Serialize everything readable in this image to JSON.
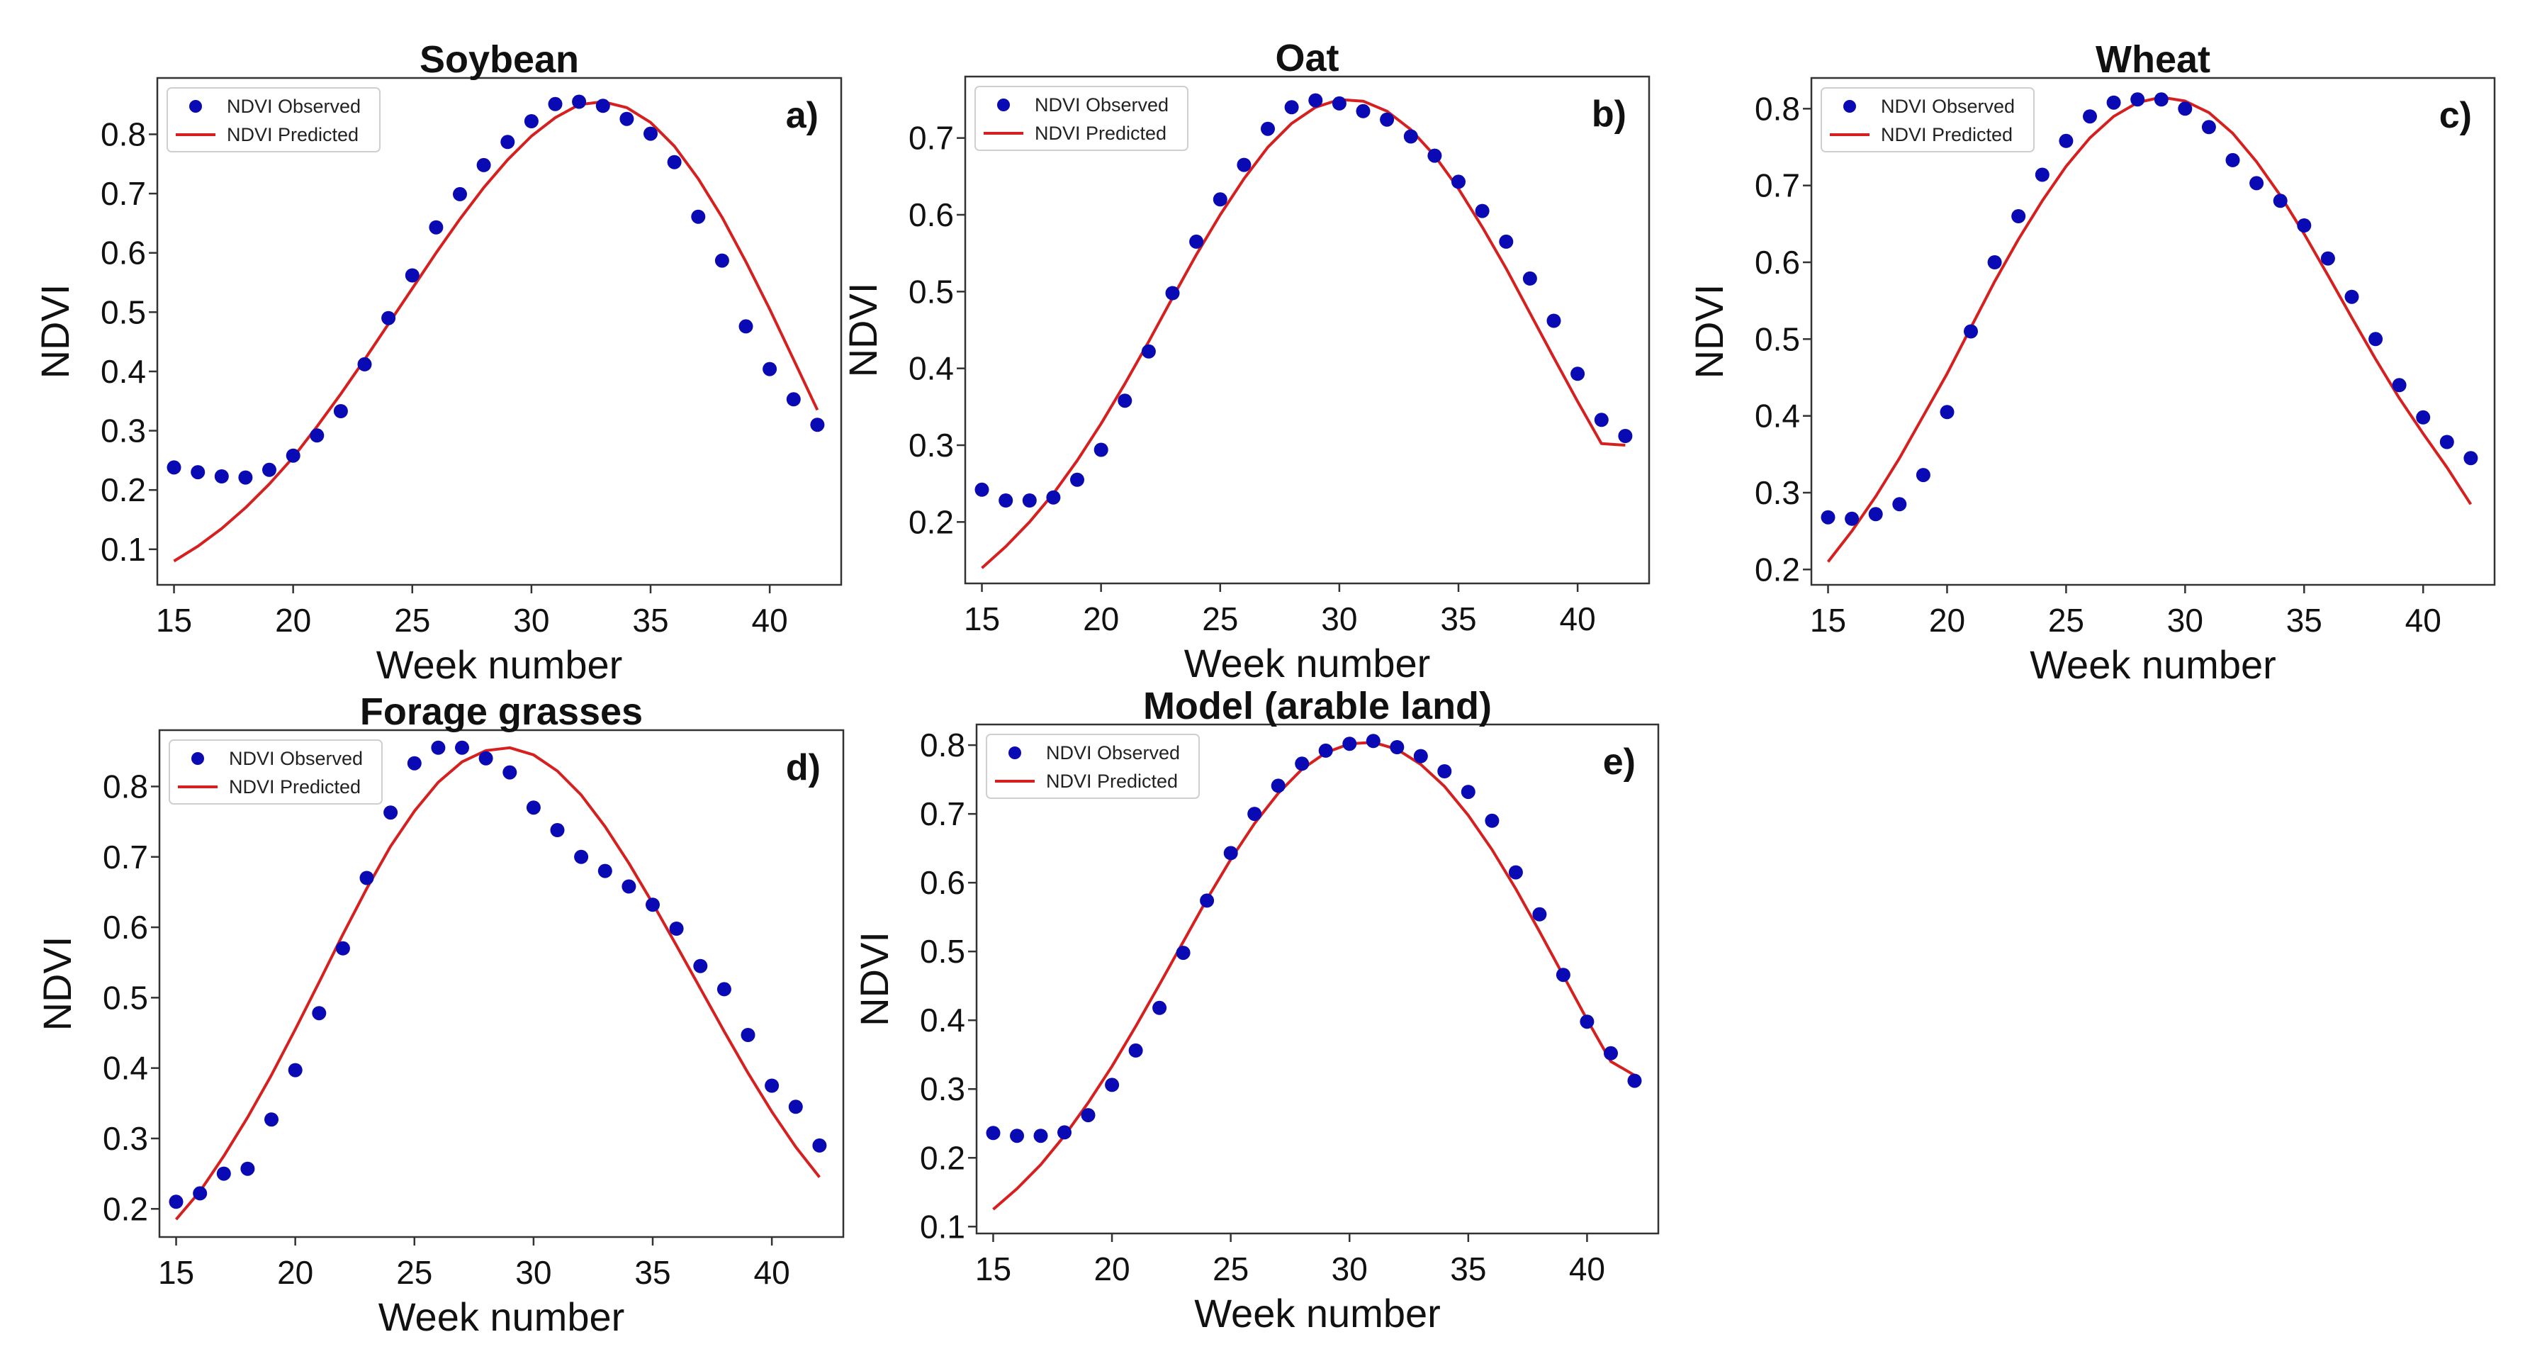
{
  "colors": {
    "observed": "#0a0ab4",
    "predicted": "#d62020",
    "axis": "#333333"
  },
  "chart_data": [
    {
      "type": "scatter+line",
      "title": "Soybean",
      "panel_label": "a)",
      "xlabel": "Week number",
      "ylabel": "NDVI",
      "xlim": [
        14.3,
        43.0
      ],
      "ylim": [
        0.04,
        0.895
      ],
      "xticks": [
        15,
        20,
        25,
        30,
        35,
        40
      ],
      "yticks": [
        0.1,
        0.2,
        0.3,
        0.4,
        0.5,
        0.6,
        0.7,
        0.8
      ],
      "legend": {
        "observed": "NDVI Observed",
        "predicted": "NDVI Predicted",
        "position": "top-left"
      },
      "series": [
        {
          "name": "NDVI Observed",
          "kind": "scatter",
          "x": [
            15,
            16,
            17,
            18,
            19,
            20,
            21,
            22,
            23,
            24,
            25,
            26,
            27,
            28,
            29,
            30,
            31,
            32,
            33,
            34,
            35,
            36,
            37,
            38,
            39,
            40,
            41,
            42
          ],
          "y": [
            0.238,
            0.23,
            0.223,
            0.221,
            0.234,
            0.258,
            0.292,
            0.333,
            0.412,
            0.49,
            0.562,
            0.643,
            0.699,
            0.748,
            0.787,
            0.822,
            0.851,
            0.855,
            0.848,
            0.826,
            0.801,
            0.753,
            0.661,
            0.587,
            0.476,
            0.404,
            0.353,
            0.31
          ]
        },
        {
          "name": "NDVI Predicted",
          "kind": "line",
          "x": [
            15,
            16,
            17,
            18,
            19,
            20,
            21,
            22,
            23,
            24,
            25,
            26,
            27,
            28,
            29,
            30,
            31,
            32,
            33,
            34,
            35,
            36,
            37,
            38,
            39,
            40,
            41,
            42
          ],
          "y": [
            0.08,
            0.105,
            0.135,
            0.17,
            0.21,
            0.255,
            0.307,
            0.362,
            0.42,
            0.48,
            0.54,
            0.6,
            0.657,
            0.71,
            0.757,
            0.797,
            0.828,
            0.85,
            0.855,
            0.845,
            0.82,
            0.78,
            0.725,
            0.66,
            0.585,
            0.505,
            0.42,
            0.335
          ]
        }
      ]
    },
    {
      "type": "scatter+line",
      "title": "Oat",
      "panel_label": "b)",
      "xlabel": "Week number",
      "ylabel": "NDVI",
      "xlim": [
        14.3,
        43.0
      ],
      "ylim": [
        0.12,
        0.78
      ],
      "xticks": [
        15,
        20,
        25,
        30,
        35,
        40
      ],
      "yticks": [
        0.2,
        0.3,
        0.4,
        0.5,
        0.6,
        0.7
      ],
      "legend": {
        "observed": "NDVI Observed",
        "predicted": "NDVI Predicted",
        "position": "top-left"
      },
      "series": [
        {
          "name": "NDVI Observed",
          "kind": "scatter",
          "x": [
            15,
            16,
            17,
            18,
            19,
            20,
            21,
            22,
            23,
            24,
            25,
            26,
            27,
            28,
            29,
            30,
            31,
            32,
            33,
            34,
            35,
            36,
            37,
            38,
            39,
            40,
            41,
            42
          ],
          "y": [
            0.242,
            0.228,
            0.228,
            0.232,
            0.255,
            0.294,
            0.358,
            0.422,
            0.498,
            0.565,
            0.62,
            0.665,
            0.712,
            0.74,
            0.749,
            0.745,
            0.735,
            0.724,
            0.702,
            0.677,
            0.643,
            0.605,
            0.565,
            0.517,
            0.462,
            0.393,
            0.333,
            0.312
          ]
        },
        {
          "name": "NDVI Predicted",
          "kind": "line",
          "x": [
            15,
            16,
            17,
            18,
            19,
            20,
            21,
            22,
            23,
            24,
            25,
            26,
            27,
            28,
            29,
            30,
            31,
            32,
            33,
            34,
            35,
            36,
            37,
            38,
            39,
            40,
            41,
            42
          ],
          "y": [
            0.14,
            0.168,
            0.2,
            0.237,
            0.28,
            0.328,
            0.38,
            0.435,
            0.492,
            0.548,
            0.6,
            0.647,
            0.688,
            0.719,
            0.74,
            0.75,
            0.748,
            0.735,
            0.711,
            0.677,
            0.634,
            0.584,
            0.53,
            0.472,
            0.414,
            0.357,
            0.302,
            0.3
          ]
        }
      ]
    },
    {
      "type": "scatter+line",
      "title": "Wheat",
      "panel_label": "c)",
      "xlabel": "Week number",
      "ylabel": "NDVI",
      "xlim": [
        14.3,
        43.0
      ],
      "ylim": [
        0.18,
        0.84
      ],
      "xticks": [
        15,
        20,
        25,
        30,
        35,
        40
      ],
      "yticks": [
        0.2,
        0.3,
        0.4,
        0.5,
        0.6,
        0.7,
        0.8
      ],
      "legend": {
        "observed": "NDVI Observed",
        "predicted": "NDVI Predicted",
        "position": "top-left"
      },
      "series": [
        {
          "name": "NDVI Observed",
          "kind": "scatter",
          "x": [
            15,
            16,
            17,
            18,
            19,
            20,
            21,
            22,
            23,
            24,
            25,
            26,
            27,
            28,
            29,
            30,
            31,
            32,
            33,
            34,
            35,
            36,
            37,
            38,
            39,
            40,
            41,
            42
          ],
          "y": [
            0.268,
            0.266,
            0.272,
            0.285,
            0.323,
            0.405,
            0.51,
            0.6,
            0.66,
            0.714,
            0.758,
            0.79,
            0.808,
            0.812,
            0.812,
            0.8,
            0.776,
            0.733,
            0.703,
            0.68,
            0.648,
            0.605,
            0.555,
            0.5,
            0.44,
            0.398,
            0.366,
            0.345
          ]
        },
        {
          "name": "NDVI Predicted",
          "kind": "line",
          "x": [
            15,
            16,
            17,
            18,
            19,
            20,
            21,
            22,
            23,
            24,
            25,
            26,
            27,
            28,
            29,
            30,
            31,
            32,
            33,
            34,
            35,
            36,
            37,
            38,
            39,
            40,
            41,
            42
          ],
          "y": [
            0.21,
            0.25,
            0.295,
            0.345,
            0.4,
            0.455,
            0.515,
            0.575,
            0.63,
            0.68,
            0.725,
            0.762,
            0.79,
            0.808,
            0.815,
            0.81,
            0.795,
            0.768,
            0.731,
            0.687,
            0.637,
            0.583,
            0.528,
            0.474,
            0.423,
            0.377,
            0.333,
            0.285
          ]
        }
      ]
    },
    {
      "type": "scatter+line",
      "title": "Forage grasses",
      "panel_label": "d)",
      "xlabel": "Week number",
      "ylabel": "NDVI",
      "xlim": [
        14.3,
        43.0
      ],
      "ylim": [
        0.16,
        0.88
      ],
      "xticks": [
        15,
        20,
        25,
        30,
        35,
        40
      ],
      "yticks": [
        0.2,
        0.3,
        0.4,
        0.5,
        0.6,
        0.7,
        0.8
      ],
      "legend": {
        "observed": "NDVI Observed",
        "predicted": "NDVI Predicted",
        "position": "top-left"
      },
      "series": [
        {
          "name": "NDVI Observed",
          "kind": "scatter",
          "x": [
            15,
            16,
            17,
            18,
            19,
            20,
            21,
            22,
            23,
            24,
            25,
            26,
            27,
            28,
            29,
            30,
            31,
            32,
            33,
            34,
            35,
            36,
            37,
            38,
            39,
            40,
            41,
            42
          ],
          "y": [
            0.21,
            0.222,
            0.25,
            0.257,
            0.327,
            0.397,
            0.478,
            0.57,
            0.67,
            0.763,
            0.833,
            0.855,
            0.855,
            0.84,
            0.82,
            0.77,
            0.738,
            0.7,
            0.68,
            0.658,
            0.632,
            0.598,
            0.545,
            0.512,
            0.447,
            0.375,
            0.345,
            0.29
          ]
        },
        {
          "name": "NDVI Predicted",
          "kind": "line",
          "x": [
            15,
            16,
            17,
            18,
            19,
            20,
            21,
            22,
            23,
            24,
            25,
            26,
            27,
            28,
            29,
            30,
            31,
            32,
            33,
            34,
            35,
            36,
            37,
            38,
            39,
            40,
            41,
            42
          ],
          "y": [
            0.185,
            0.225,
            0.275,
            0.33,
            0.39,
            0.455,
            0.522,
            0.59,
            0.655,
            0.715,
            0.765,
            0.806,
            0.835,
            0.851,
            0.855,
            0.845,
            0.822,
            0.788,
            0.743,
            0.691,
            0.634,
            0.574,
            0.513,
            0.452,
            0.393,
            0.338,
            0.288,
            0.245
          ]
        }
      ]
    },
    {
      "type": "scatter+line",
      "title": "Model (arable land)",
      "panel_label": "e)",
      "xlabel": "Week number",
      "ylabel": "NDVI",
      "xlim": [
        14.3,
        43.0
      ],
      "ylim": [
        0.09,
        0.83
      ],
      "xticks": [
        15,
        20,
        25,
        30,
        35,
        40
      ],
      "yticks": [
        0.1,
        0.2,
        0.3,
        0.4,
        0.5,
        0.6,
        0.7,
        0.8
      ],
      "legend": {
        "observed": "NDVI Observed",
        "predicted": "NDVI Predicted",
        "position": "top-left"
      },
      "series": [
        {
          "name": "NDVI Observed",
          "kind": "scatter",
          "x": [
            15,
            16,
            17,
            18,
            19,
            20,
            21,
            22,
            23,
            24,
            25,
            26,
            27,
            28,
            29,
            30,
            31,
            32,
            33,
            34,
            35,
            36,
            37,
            38,
            39,
            40,
            41,
            42
          ],
          "y": [
            0.236,
            0.232,
            0.232,
            0.237,
            0.262,
            0.306,
            0.356,
            0.418,
            0.498,
            0.574,
            0.643,
            0.7,
            0.741,
            0.773,
            0.792,
            0.802,
            0.806,
            0.797,
            0.784,
            0.762,
            0.732,
            0.69,
            0.615,
            0.554,
            0.466,
            0.398,
            0.352,
            0.312
          ]
        },
        {
          "name": "NDVI Predicted",
          "kind": "line",
          "x": [
            15,
            16,
            17,
            18,
            19,
            20,
            21,
            22,
            23,
            24,
            25,
            26,
            27,
            28,
            29,
            30,
            31,
            32,
            33,
            34,
            35,
            36,
            37,
            38,
            39,
            40,
            41,
            42
          ],
          "y": [
            0.125,
            0.155,
            0.19,
            0.232,
            0.28,
            0.333,
            0.391,
            0.452,
            0.514,
            0.576,
            0.634,
            0.686,
            0.73,
            0.765,
            0.789,
            0.802,
            0.804,
            0.794,
            0.772,
            0.74,
            0.698,
            0.648,
            0.591,
            0.529,
            0.465,
            0.401,
            0.34,
            0.32
          ]
        }
      ]
    }
  ]
}
